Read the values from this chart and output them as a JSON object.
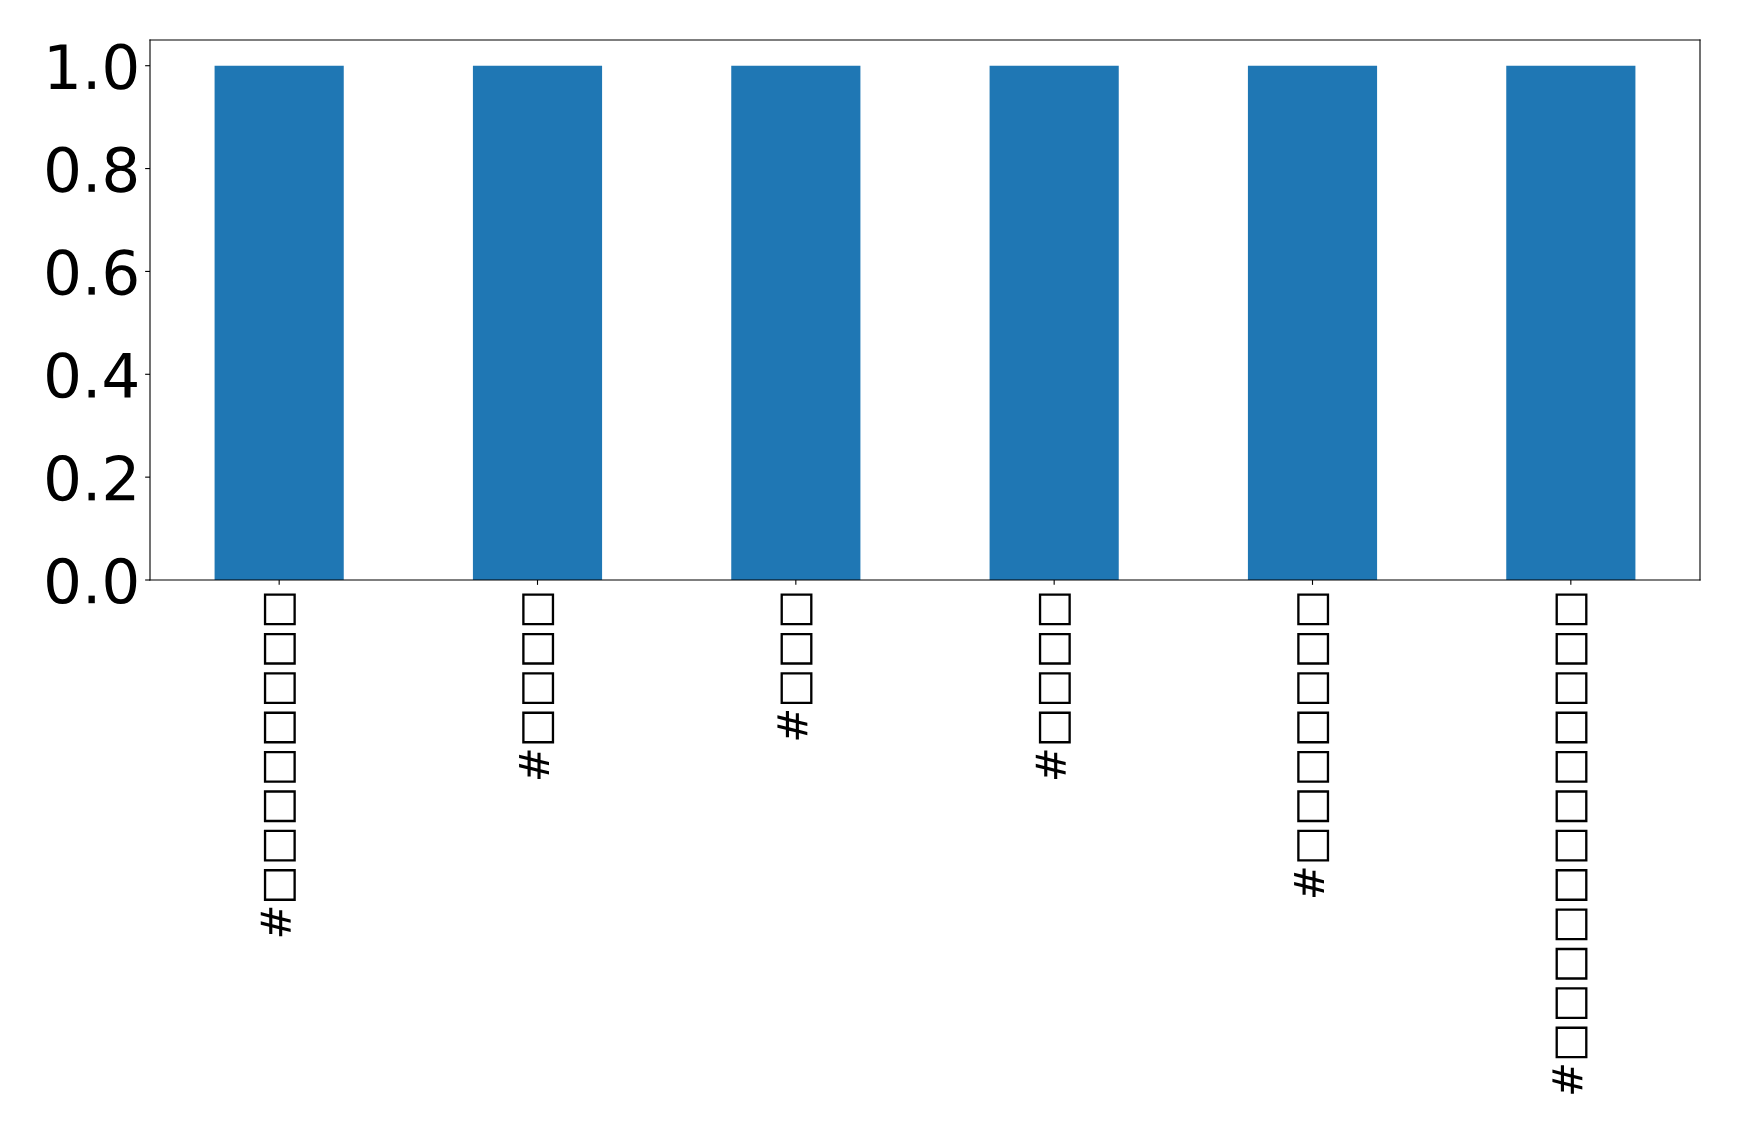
{
  "chart_data": {
    "type": "bar",
    "categories": [
      "#□□□□□□□□",
      "#□□□□",
      "#□□□",
      "#□□□□",
      "#□□□□□□□",
      "#□□□□□□□□□□□□"
    ],
    "values": [
      1,
      1,
      1,
      1,
      1,
      1
    ],
    "color": "#1f77b4",
    "ylim": [
      0,
      1.05
    ],
    "yticks": [
      {
        "value": 0,
        "label": "0.0"
      },
      0.2,
      0.4,
      0.6,
      0.8,
      {
        "value": 1,
        "label": "1.0"
      }
    ],
    "grid": false,
    "legend": false
  }
}
